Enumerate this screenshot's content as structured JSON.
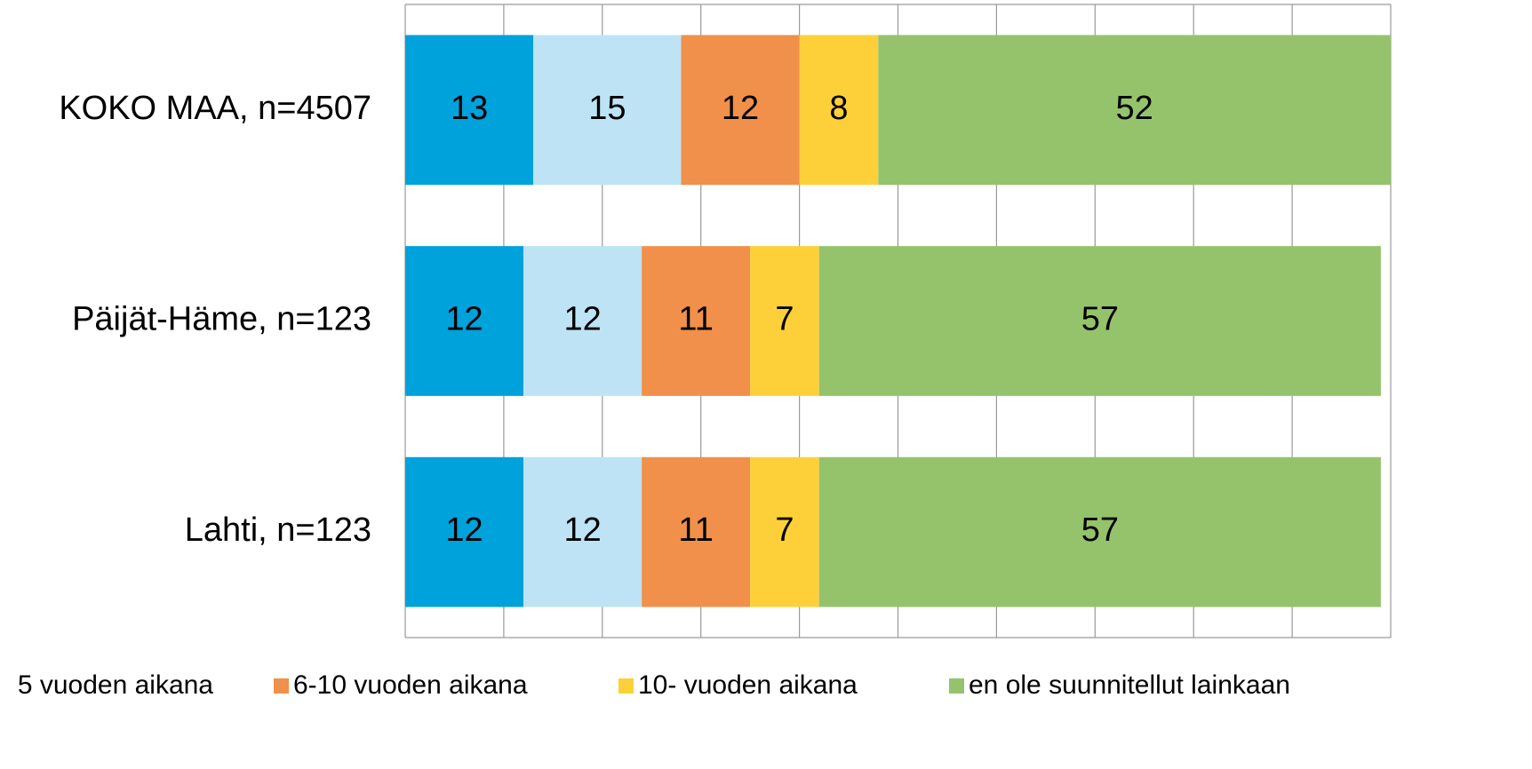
{
  "chart_data": {
    "type": "bar",
    "orientation": "horizontal",
    "stacked": true,
    "categories": [
      "KOKO MAA, n=4507",
      "Päijät-Häme, n=123",
      "Lahti, n=123"
    ],
    "series": [
      {
        "color": "#00a2db",
        "values": [
          13,
          12,
          12
        ]
      },
      {
        "name": "5 vuoden aikana",
        "color": "#bde3f5",
        "values": [
          15,
          12,
          12
        ]
      },
      {
        "name": "6-10 vuoden aikana",
        "color": "#f0904a",
        "values": [
          12,
          11,
          11
        ]
      },
      {
        "name": "10- vuoden aikana",
        "color": "#fdd03a",
        "values": [
          8,
          7,
          7
        ]
      },
      {
        "name": "en ole suunnitellut  lainkaan",
        "color": "#95c36b",
        "values": [
          52,
          57,
          57
        ]
      }
    ],
    "xlim": [
      0,
      100
    ],
    "xticks": [
      0,
      10,
      20,
      30,
      40,
      50,
      60,
      70,
      80,
      90,
      100
    ],
    "grid": true,
    "legend": "bottom"
  }
}
